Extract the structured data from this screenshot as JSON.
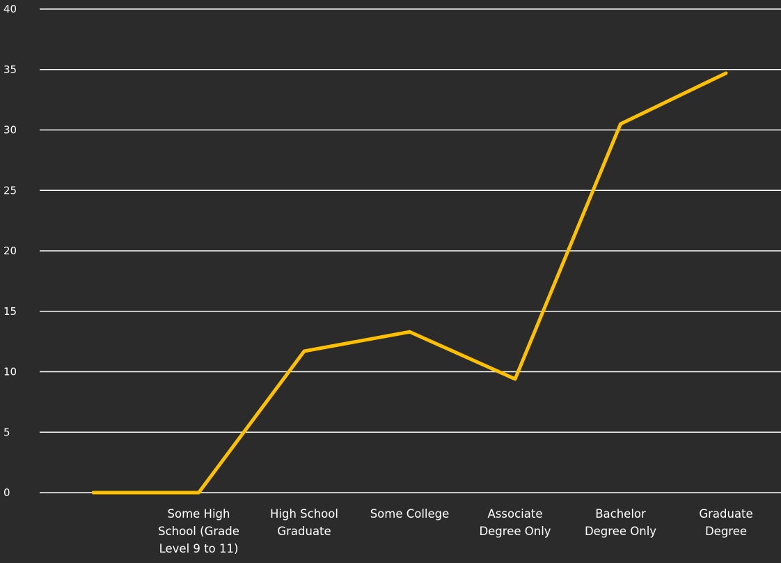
{
  "chart_data": {
    "type": "line",
    "title": "",
    "xlabel": "",
    "ylabel": "",
    "ylim": [
      0,
      40
    ],
    "yticks": [
      0,
      5,
      10,
      15,
      20,
      25,
      30,
      35,
      40
    ],
    "grid": true,
    "legend": "none",
    "categories": [
      "",
      "Some High School (Grade Level 9 to 11)",
      "High School Graduate",
      "Some College",
      "Associate Degree Only",
      "Bachelor Degree Only",
      "Graduate Degree"
    ],
    "category_label_lines": [
      [],
      [
        "Some High",
        "School (Grade",
        "Level 9 to 11)"
      ],
      [
        "High School",
        "Graduate"
      ],
      [
        "Some College"
      ],
      [
        "Associate",
        "Degree Only"
      ],
      [
        "Bachelor",
        "Degree Only"
      ],
      [
        "Graduate",
        "Degree"
      ]
    ],
    "series": [
      {
        "values": [
          0,
          0,
          11.7,
          13.3,
          9.4,
          30.5,
          34.7
        ],
        "color": "#ffc000"
      }
    ],
    "colors": {
      "background": "#2b2b2b",
      "gridline": "#ffffff",
      "text": "#ffffff"
    }
  }
}
